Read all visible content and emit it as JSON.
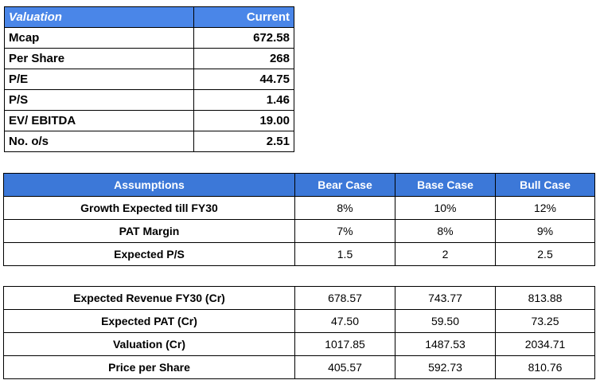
{
  "valuation": {
    "header": [
      "Valuation",
      "Current"
    ],
    "rows": [
      [
        "Mcap",
        "672.58"
      ],
      [
        "Per Share",
        "268"
      ],
      [
        "P/E",
        "44.75"
      ],
      [
        "P/S",
        "1.46"
      ],
      [
        "EV/ EBITDA",
        "19.00"
      ],
      [
        "No. o/s",
        "2.51"
      ]
    ]
  },
  "assumptions": {
    "header": [
      "Assumptions",
      "Bear Case",
      "Base Case",
      "Bull Case"
    ],
    "rows": [
      [
        "Growth Expected till FY30",
        "8%",
        "10%",
        "12%"
      ],
      [
        "PAT Margin",
        "7%",
        "8%",
        "9%"
      ],
      [
        "Expected P/S",
        "1.5",
        "2",
        "2.5"
      ]
    ]
  },
  "results": {
    "rows": [
      [
        "Expected Revenue FY30 (Cr)",
        "678.57",
        "743.77",
        "813.88"
      ],
      [
        "Expected PAT (Cr)",
        "47.50",
        "59.50",
        "73.25"
      ],
      [
        "Valuation (Cr)",
        "1017.85",
        "1487.53",
        "2034.71"
      ],
      [
        "Price per Share",
        "405.57",
        "592.73",
        "810.76"
      ]
    ]
  },
  "colors": {
    "header1": "#4a86e8",
    "header2": "#3c78d8"
  }
}
